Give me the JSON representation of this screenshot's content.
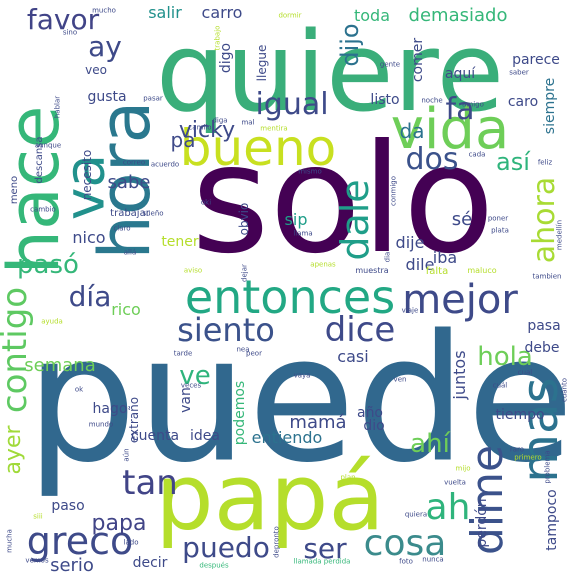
{
  "palette": {
    "p0": "#440154",
    "p1": "#482878",
    "p2": "#3e4a89",
    "p3": "#31688e",
    "p4": "#26828e",
    "p5": "#1f9e89",
    "p6": "#35b779",
    "p7": "#6ece58",
    "p8": "#b5de2b",
    "p9": "#d8e219"
  },
  "words": [
    {
      "text": "solo",
      "color": "#440154",
      "weight": 100
    },
    {
      "text": "puede",
      "color": "#31688e",
      "weight": 95
    },
    {
      "text": "quiere",
      "color": "#3aae7a",
      "weight": 80
    },
    {
      "text": "papá",
      "color": "#b5de2b",
      "weight": 62
    },
    {
      "text": "hace",
      "color": "#35b779",
      "weight": 48
    },
    {
      "text": "hora",
      "color": "#2a788e",
      "weight": 45
    },
    {
      "text": "vida",
      "color": "#6ece58",
      "weight": 36
    },
    {
      "text": "bueno",
      "color": "#c8e020",
      "weight": 34
    },
    {
      "text": "entonces",
      "color": "#22a884",
      "weight": 32
    },
    {
      "text": "va",
      "color": "#21918c",
      "weight": 30
    },
    {
      "text": "mas",
      "color": "#2c728e",
      "weight": 28
    },
    {
      "text": "dime",
      "color": "#3b528b",
      "weight": 27
    },
    {
      "text": "greco",
      "color": "#3e4a89",
      "weight": 26
    },
    {
      "text": "cosa",
      "color": "#3b8b8c",
      "weight": 24
    },
    {
      "text": "mejor",
      "color": "#3e4a89",
      "weight": 24
    },
    {
      "text": "dale",
      "color": "#1f9e89",
      "weight": 23
    },
    {
      "text": "ahora",
      "color": "#a8db34",
      "weight": 22
    },
    {
      "text": "siento",
      "color": "#3b528b",
      "weight": 22
    },
    {
      "text": "dice",
      "color": "#3e4a89",
      "weight": 22
    },
    {
      "text": "ah",
      "color": "#2fb47c",
      "weight": 21
    },
    {
      "text": "tan",
      "color": "#414487",
      "weight": 21
    },
    {
      "text": "ser",
      "color": "#3e4a89",
      "weight": 20
    },
    {
      "text": "contigo",
      "color": "#5ec962",
      "weight": 20
    },
    {
      "text": "igual",
      "color": "#3e4a89",
      "weight": 19
    },
    {
      "text": "dos",
      "color": "#3b528b",
      "weight": 19
    },
    {
      "text": "día",
      "color": "#3e4a89",
      "weight": 18
    },
    {
      "text": "pasó",
      "color": "#35b779",
      "weight": 18
    },
    {
      "text": "fa",
      "color": "#3e4a89",
      "weight": 18
    },
    {
      "text": "hola",
      "color": "#6ece58",
      "weight": 17
    },
    {
      "text": "puedo",
      "color": "#3e4a89",
      "weight": 17
    },
    {
      "text": "favor",
      "color": "#414487",
      "weight": 17
    },
    {
      "text": "ay",
      "color": "#3e4a89",
      "weight": 17
    },
    {
      "text": "ayer",
      "color": "#a0da39",
      "weight": 16
    },
    {
      "text": "dijo",
      "color": "#2c728e",
      "weight": 16
    },
    {
      "text": "ve",
      "color": "#2fb47c",
      "weight": 16
    },
    {
      "text": "ahí",
      "color": "#6ece58",
      "weight": 15
    },
    {
      "text": "papa",
      "color": "#414487",
      "weight": 15
    },
    {
      "text": "así",
      "color": "#2fb47c",
      "weight": 15
    },
    {
      "text": "toda",
      "color": "#35b779",
      "weight": 14
    },
    {
      "text": "demasiado",
      "color": "#35b779",
      "weight": 14
    },
    {
      "text": "vicky",
      "color": "#3e4a89",
      "weight": 14
    },
    {
      "text": "sabe",
      "color": "#3e4a89",
      "weight": 13
    },
    {
      "text": "da",
      "color": "#2c728e",
      "weight": 13
    },
    {
      "text": "semana",
      "color": "#6ece58",
      "weight": 12
    },
    {
      "text": "serio",
      "color": "#3e4a89",
      "weight": 12
    },
    {
      "text": "mamá",
      "color": "#3e4a89",
      "weight": 12
    },
    {
      "text": "salir",
      "color": "#21918c",
      "weight": 11
    },
    {
      "text": "carro",
      "color": "#3e4a89",
      "weight": 11
    },
    {
      "text": "pa",
      "color": "#3e4a89",
      "weight": 11
    },
    {
      "text": "iba",
      "color": "#3e4a89",
      "weight": 11
    },
    {
      "text": "tener",
      "color": "#b5de2b",
      "weight": 11
    },
    {
      "text": "sip",
      "color": "#1f9e89",
      "weight": 11
    },
    {
      "text": "sé",
      "color": "#3e4a89",
      "weight": 11
    },
    {
      "text": "dije",
      "color": "#3e4a89",
      "weight": 11
    },
    {
      "text": "dile",
      "color": "#3e4a89",
      "weight": 11
    },
    {
      "text": "hago",
      "color": "#3e4a89",
      "weight": 11
    },
    {
      "text": "cuenta",
      "color": "#3e4a89",
      "weight": 11
    },
    {
      "text": "entiendo",
      "color": "#2c728e",
      "weight": 11
    },
    {
      "text": "nico",
      "color": "#3e4a89",
      "weight": 11
    },
    {
      "text": "rico",
      "color": "#6ece58",
      "weight": 11
    },
    {
      "text": "gusta",
      "color": "#3e4a89",
      "weight": 10
    },
    {
      "text": "listo",
      "color": "#3e4a89",
      "weight": 10
    },
    {
      "text": "caro",
      "color": "#3e4a89",
      "weight": 10
    },
    {
      "text": "siempre",
      "color": "#2c728e",
      "weight": 10
    },
    {
      "text": "parece",
      "color": "#3e4a89",
      "weight": 10
    },
    {
      "text": "aquí",
      "color": "#3e4a89",
      "weight": 10
    },
    {
      "text": "comer",
      "color": "#3e4a89",
      "weight": 10
    },
    {
      "text": "pasa",
      "color": "#3e4a89",
      "weight": 10
    },
    {
      "text": "debe",
      "color": "#3e4a89",
      "weight": 10
    },
    {
      "text": "casi",
      "color": "#3e4a89",
      "weight": 10
    },
    {
      "text": "juntos",
      "color": "#3e4a89",
      "weight": 10
    },
    {
      "text": "tiempo",
      "color": "#3e4a89",
      "weight": 10
    },
    {
      "text": "año",
      "color": "#3e4a89",
      "weight": 10
    },
    {
      "text": "dio",
      "color": "#3e4a89",
      "weight": 10
    },
    {
      "text": "van",
      "color": "#3e4a89",
      "weight": 10
    },
    {
      "text": "podemos",
      "color": "#35b779",
      "weight": 10
    },
    {
      "text": "idea",
      "color": "#3e4a89",
      "weight": 10
    },
    {
      "text": "paso",
      "color": "#3e4a89",
      "weight": 10
    },
    {
      "text": "tampoco",
      "color": "#3e4a89",
      "weight": 10
    },
    {
      "text": "perdón",
      "color": "#3e4a89",
      "weight": 10
    },
    {
      "text": "necesito",
      "color": "#3e4a89",
      "weight": 9
    },
    {
      "text": "obvio",
      "color": "#3e4a89",
      "weight": 9
    },
    {
      "text": "extraño",
      "color": "#3e4a89",
      "weight": 9
    },
    {
      "text": "decir",
      "color": "#3e4a89",
      "weight": 9
    },
    {
      "text": "trabajar",
      "color": "#3e4a89",
      "weight": 8
    },
    {
      "text": "veo",
      "color": "#3e4a89",
      "weight": 8
    },
    {
      "text": "descansa",
      "color": "#3e4a89",
      "weight": 8
    },
    {
      "text": "meno",
      "color": "#3e4a89",
      "weight": 8
    },
    {
      "text": "llegue",
      "color": "#3e4a89",
      "weight": 8
    },
    {
      "text": "digo",
      "color": "#3e4a89",
      "weight": 8
    },
    {
      "text": "falta",
      "color": "#b5de2b",
      "weight": 8
    },
    {
      "text": "muestra",
      "color": "#3e4a89",
      "weight": 7
    },
    {
      "text": "maluco",
      "color": "#b5de2b",
      "weight": 7
    },
    {
      "text": "tambien",
      "color": "#3e4a89",
      "weight": 7
    },
    {
      "text": "cual",
      "color": "#3e4a89",
      "weight": 7
    },
    {
      "text": "cuál",
      "color": "#3e4a89",
      "weight": 7
    },
    {
      "text": "primero",
      "color": "#b5de2b",
      "weight": 7
    },
    {
      "text": "mucha",
      "color": "#3e4a89",
      "weight": 7
    },
    {
      "text": "nunca",
      "color": "#3e4a89",
      "weight": 7
    },
    {
      "text": "foto",
      "color": "#3e4a89",
      "weight": 7
    },
    {
      "text": "depronto",
      "color": "#3e4a89",
      "weight": 7
    },
    {
      "text": "llamada perdida",
      "color": "#35b779",
      "weight": 7
    },
    {
      "text": "después",
      "color": "#35b779",
      "weight": 7
    },
    {
      "text": "vemos",
      "color": "#3e4a89",
      "weight": 7
    },
    {
      "text": "siii",
      "color": "#b5de2b",
      "weight": 7
    },
    {
      "text": "lado",
      "color": "#3e4a89",
      "weight": 7
    },
    {
      "text": "quiera",
      "color": "#3e4a89",
      "weight": 7
    },
    {
      "text": "vuelta",
      "color": "#3e4a89",
      "weight": 7
    },
    {
      "text": "mijo",
      "color": "#b5de2b",
      "weight": 7
    },
    {
      "text": "raro",
      "color": "#3e4a89",
      "weight": 7
    },
    {
      "text": "plan",
      "color": "#b5de2b",
      "weight": 7
    },
    {
      "text": "vaya",
      "color": "#3e4a89",
      "weight": 7
    },
    {
      "text": "ven",
      "color": "#3e4a89",
      "weight": 7
    },
    {
      "text": "peor",
      "color": "#3e4a89",
      "weight": 7
    },
    {
      "text": "nea",
      "color": "#3e4a89",
      "weight": 7
    },
    {
      "text": "tarde",
      "color": "#3e4a89",
      "weight": 7
    },
    {
      "text": "veces",
      "color": "#3e4a89",
      "weight": 7
    },
    {
      "text": "ok",
      "color": "#3e4a89",
      "weight": 7
    },
    {
      "text": "mundo",
      "color": "#3e4a89",
      "weight": 7
    },
    {
      "text": "aún",
      "color": "#3e4a89",
      "weight": 6
    },
    {
      "text": "ayuda",
      "color": "#b5de2b",
      "weight": 6
    },
    {
      "text": "viaje",
      "color": "#3e4a89",
      "weight": 6
    },
    {
      "text": "aviso",
      "color": "#b5de2b",
      "weight": 6
    },
    {
      "text": "apenas",
      "color": "#b5de2b",
      "weight": 6
    },
    {
      "text": "allá",
      "color": "#3e4a89",
      "weight": 6
    },
    {
      "text": "llama",
      "color": "#3e4a89",
      "weight": 6
    },
    {
      "text": "dejar",
      "color": "#3e4a89",
      "weight": 6
    },
    {
      "text": "plata",
      "color": "#3e4a89",
      "weight": 6
    },
    {
      "text": "poner",
      "color": "#3e4a89",
      "weight": 6
    },
    {
      "text": "medellín",
      "color": "#3e4a89",
      "weight": 6
    },
    {
      "text": "cuánto",
      "color": "#3e4a89",
      "weight": 6
    },
    {
      "text": "problema",
      "color": "#3e4a89",
      "weight": 6
    },
    {
      "text": "claro",
      "color": "#3e4a89",
      "weight": 6
    },
    {
      "text": "sueño",
      "color": "#3e4a89",
      "weight": 6
    },
    {
      "text": "oki",
      "color": "#3e4a89",
      "weight": 6
    },
    {
      "text": "cambio",
      "color": "#3e4a89",
      "weight": 6
    },
    {
      "text": "correo",
      "color": "#3e4a89",
      "weight": 6
    },
    {
      "text": "acuerdo",
      "color": "#3e4a89",
      "weight": 6
    },
    {
      "text": "mismo",
      "color": "#3e4a89",
      "weight": 6
    },
    {
      "text": "conmigo",
      "color": "#3e4a89",
      "weight": 6
    },
    {
      "text": "feliz",
      "color": "#3e4a89",
      "weight": 6
    },
    {
      "text": "cada",
      "color": "#3e4a89",
      "weight": 6
    },
    {
      "text": "mentira",
      "color": "#b5de2b",
      "weight": 6
    },
    {
      "text": "amigo",
      "color": "#3e4a89",
      "weight": 6
    },
    {
      "text": "noche",
      "color": "#3e4a89",
      "weight": 6
    },
    {
      "text": "saber",
      "color": "#3e4a89",
      "weight": 6
    },
    {
      "text": "gente",
      "color": "#3e4a89",
      "weight": 6
    },
    {
      "text": "pasar",
      "color": "#3e4a89",
      "weight": 6
    },
    {
      "text": "diga",
      "color": "#3e4a89",
      "weight": 6
    },
    {
      "text": "mal",
      "color": "#3e4a89",
      "weight": 6
    },
    {
      "text": "camilo",
      "color": "#3e4a89",
      "weight": 6
    },
    {
      "text": "hablar",
      "color": "#3e4a89",
      "weight": 6
    },
    {
      "text": "aunque",
      "color": "#3e4a89",
      "weight": 6
    },
    {
      "text": "mucho",
      "color": "#3e4a89",
      "weight": 6
    },
    {
      "text": "sino",
      "color": "#3e4a89",
      "weight": 6
    },
    {
      "text": "trabajo",
      "color": "#b5de2b",
      "weight": 6
    },
    {
      "text": "dormir",
      "color": "#b5de2b",
      "weight": 6
    },
    {
      "text": "dia",
      "color": "#3e4a89",
      "weight": 6
    }
  ]
}
